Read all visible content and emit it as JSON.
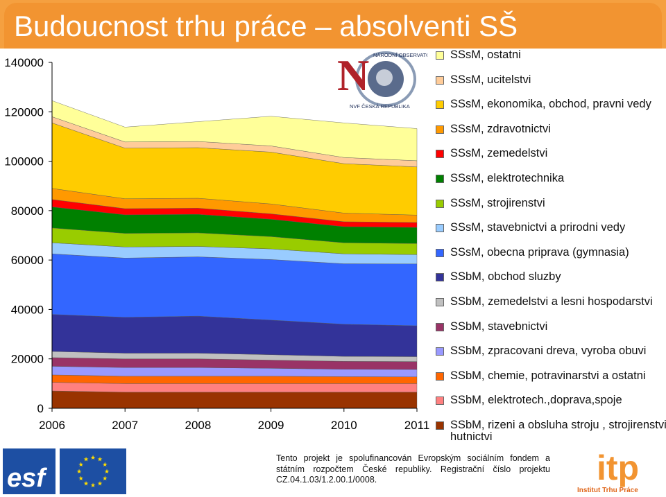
{
  "page": {
    "title": "Budoucnost trhu práce – absolventi SŠ"
  },
  "footer": {
    "text": "Tento projekt je spolufinancován Evropským sociálním fondem a státním rozpočtem České republiky. Registrační číslo projektu CZ.04.1.03/1.2.00.1/0008.",
    "esf_logo_text": "esf",
    "itp_logo_text": "itp",
    "itp_logo_caption": "Institut Trhu Práce"
  },
  "nvf_logo": {
    "text_top": "NÁRODNÍ OBSERVATOŘ",
    "text_bottom": "NVF ČESKÁ REPUBLIKA",
    "letter": "N"
  },
  "chart_data": {
    "type": "area",
    "stacked": true,
    "x": [
      2006,
      2007,
      2008,
      2009,
      2010,
      2011
    ],
    "xlim": [
      2006,
      2011
    ],
    "ylim": [
      0,
      140000
    ],
    "yticks": [
      0,
      20000,
      40000,
      60000,
      80000,
      100000,
      120000,
      140000
    ],
    "grid": false,
    "legend_position": "right",
    "series": [
      {
        "name": "SSbM, rizeni a obsluha stroju , strojirenstvi, hutnictvi",
        "color": "#993300",
        "values": [
          7000,
          6500,
          6500,
          6500,
          6500,
          6500
        ]
      },
      {
        "name": "SSbM, elektrotech.,doprava,spoje",
        "color": "#ff8080",
        "values": [
          3500,
          3500,
          3500,
          3500,
          3500,
          3500
        ]
      },
      {
        "name": "SSbM, chemie, potravinarstvi a ostatni",
        "color": "#ff6600",
        "values": [
          3000,
          3000,
          3000,
          3000,
          2800,
          2700
        ]
      },
      {
        "name": "SSbM, zpracovani dreva, vyroba obuvi",
        "color": "#9999ff",
        "values": [
          3500,
          3500,
          3500,
          3200,
          3000,
          3000
        ]
      },
      {
        "name": "SSbM, stavebnictvi",
        "color": "#993366",
        "values": [
          3500,
          3500,
          3500,
          3300,
          3200,
          3200
        ]
      },
      {
        "name": "SSbM, zemedelstvi a lesni hospodarstvi",
        "color": "#c0c0c0",
        "values": [
          2500,
          2300,
          2300,
          2200,
          2000,
          2000
        ]
      },
      {
        "name": "SSbM, obchod sluzby",
        "color": "#333399",
        "values": [
          15000,
          14500,
          15000,
          14000,
          13000,
          12500
        ]
      },
      {
        "name": "SSsM, obecna priprava (gymnasia)",
        "color": "#3366ff",
        "values": [
          24500,
          24000,
          24000,
          24500,
          24500,
          25000
        ]
      },
      {
        "name": "SSsM, stavebnictvi a prirodni vedy",
        "color": "#99ccff",
        "values": [
          4500,
          4500,
          4200,
          4300,
          4000,
          3800
        ]
      },
      {
        "name": "SSsM, strojirenstvi",
        "color": "#99cc00",
        "values": [
          6000,
          5500,
          5500,
          5000,
          4500,
          4500
        ]
      },
      {
        "name": "SSsM, elektrotechnika",
        "color": "#008000",
        "values": [
          8500,
          7500,
          7500,
          7000,
          6500,
          6500
        ]
      },
      {
        "name": "SSsM, zemedelstvi",
        "color": "#ff0000",
        "values": [
          3000,
          2500,
          2500,
          2200,
          2000,
          2000
        ]
      },
      {
        "name": "SSsM, zdravotnictvi",
        "color": "#ff9900",
        "values": [
          4500,
          4000,
          4000,
          4000,
          3500,
          3000
        ]
      },
      {
        "name": "SSsM, ekonomika, obchod, pravni vedy",
        "color": "#ffcc00",
        "values": [
          26500,
          20500,
          20500,
          21000,
          20000,
          19500
        ]
      },
      {
        "name": "SSsM, ucitelstvi",
        "color": "#ffcc99",
        "values": [
          2500,
          2500,
          2500,
          2500,
          2500,
          2500
        ]
      },
      {
        "name": "SSsM, ostatni",
        "color": "#ffff99",
        "values": [
          6500,
          6000,
          8000,
          12000,
          14000,
          13000
        ]
      }
    ],
    "legend_order": [
      "SSsM, ostatni",
      "SSsM, ucitelstvi",
      "SSsM, ekonomika, obchod, pravni vedy",
      "SSsM, zdravotnictvi",
      "SSsM, zemedelstvi",
      "SSsM, elektrotechnika",
      "SSsM, strojirenstvi",
      "SSsM, stavebnictvi a prirodni vedy",
      "SSsM, obecna priprava (gymnasia)",
      "SSbM, obchod sluzby",
      "SSbM, zemedelstvi a lesni hospodarstvi",
      "SSbM, stavebnictvi",
      "SSbM, zpracovani dreva, vyroba obuvi",
      "SSbM, chemie, potravinarstvi a ostatni",
      "SSbM, elektrotech.,doprava,spoje",
      "SSbM, rizeni a obsluha stroju , strojirenstvi, hutnictvi"
    ]
  }
}
